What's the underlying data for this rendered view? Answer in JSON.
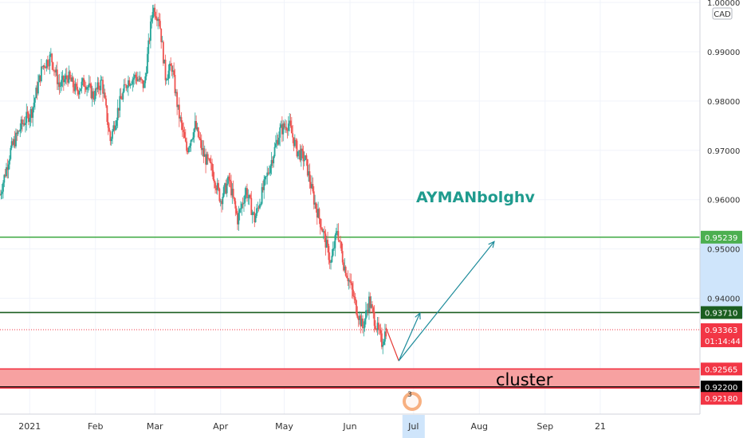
{
  "chart_data": {
    "type": "candlestick",
    "currency_label": "CAD",
    "watermark": "AYMANbolghv",
    "annotation": "cluster",
    "ylim": [
      0.9165,
      1.0005
    ],
    "y_ticks": [
      "0.99000",
      "0.98000",
      "0.97000",
      "0.96000",
      "0.95000",
      "0.94000"
    ],
    "top_tick_partial": "1.00000",
    "x_ticks": [
      "2021",
      "Feb",
      "Mar",
      "Apr",
      "May",
      "Jun",
      "Jul",
      "Aug",
      "Sep",
      "21"
    ],
    "highlighted_x_tick": "Jul",
    "x_domain": [
      0,
      330
    ],
    "x_tick_days": [
      14,
      45,
      73,
      104,
      134,
      165,
      195,
      226,
      257,
      283
    ],
    "time_to_close": "01:14:44",
    "price_path": [
      [
        0,
        0.961
      ],
      [
        5,
        0.97
      ],
      [
        10,
        0.975
      ],
      [
        15,
        0.978
      ],
      [
        20,
        0.987
      ],
      [
        24,
        0.989
      ],
      [
        28,
        0.983
      ],
      [
        32,
        0.985
      ],
      [
        36,
        0.982
      ],
      [
        40,
        0.984
      ],
      [
        44,
        0.981
      ],
      [
        48,
        0.984
      ],
      [
        52,
        0.972
      ],
      [
        56,
        0.979
      ],
      [
        60,
        0.984
      ],
      [
        64,
        0.985
      ],
      [
        68,
        0.983
      ],
      [
        72,
        0.999
      ],
      [
        75,
        0.997
      ],
      [
        78,
        0.985
      ],
      [
        81,
        0.987
      ],
      [
        84,
        0.978
      ],
      [
        88,
        0.97
      ],
      [
        92,
        0.975
      ],
      [
        96,
        0.969
      ],
      [
        100,
        0.966
      ],
      [
        104,
        0.96
      ],
      [
        108,
        0.964
      ],
      [
        112,
        0.956
      ],
      [
        116,
        0.962
      ],
      [
        120,
        0.956
      ],
      [
        124,
        0.962
      ],
      [
        128,
        0.968
      ],
      [
        132,
        0.974
      ],
      [
        136,
        0.9755
      ],
      [
        140,
        0.97
      ],
      [
        144,
        0.968
      ],
      [
        148,
        0.96
      ],
      [
        152,
        0.954
      ],
      [
        156,
        0.947
      ],
      [
        159,
        0.954
      ],
      [
        162,
        0.947
      ],
      [
        165,
        0.943
      ],
      [
        168,
        0.938
      ],
      [
        171,
        0.934
      ],
      [
        174,
        0.9395
      ],
      [
        177,
        0.935
      ],
      [
        180,
        0.931
      ],
      [
        182,
        0.9336
      ]
    ],
    "projection_paths": [
      {
        "name": "red-drop",
        "color": "#e53935",
        "points": [
          [
            182,
            0.934
          ],
          [
            188,
            0.9273
          ]
        ]
      },
      {
        "name": "teal-bounce",
        "color": "#1e8c9b",
        "points": [
          [
            188,
            0.9273
          ],
          [
            198,
            0.937
          ]
        ],
        "arrow": true
      },
      {
        "name": "teal-target",
        "color": "#1e8c9b",
        "points": [
          [
            188,
            0.9273
          ],
          [
            233,
            0.9515
          ]
        ],
        "arrow": true
      }
    ],
    "levels": [
      {
        "value": 0.95239,
        "label": "0.95239",
        "color": "#4caf50",
        "style": "solid"
      },
      {
        "value": 0.9371,
        "label": "0.93710",
        "color": "#1b5e20",
        "style": "solid"
      },
      {
        "value": 0.93363,
        "label": "0.93363",
        "color": "#f23645",
        "style": "dotted",
        "sublabel": "01:14:44"
      },
      {
        "value": 0.92565,
        "label": "0.92565",
        "color": "#f23645",
        "style": "solid"
      },
      {
        "value": 0.922,
        "label": "0.92200",
        "color": "#000000",
        "style": "solid"
      },
      {
        "value": 0.9218,
        "label": "0.92180",
        "color": "#f23645",
        "style": "solid"
      }
    ],
    "zone": {
      "from": 0.92565,
      "to": 0.9218,
      "color": "#f7a1a1"
    },
    "axis_highlight_range": [
      0.9516,
      0.936
    ]
  }
}
